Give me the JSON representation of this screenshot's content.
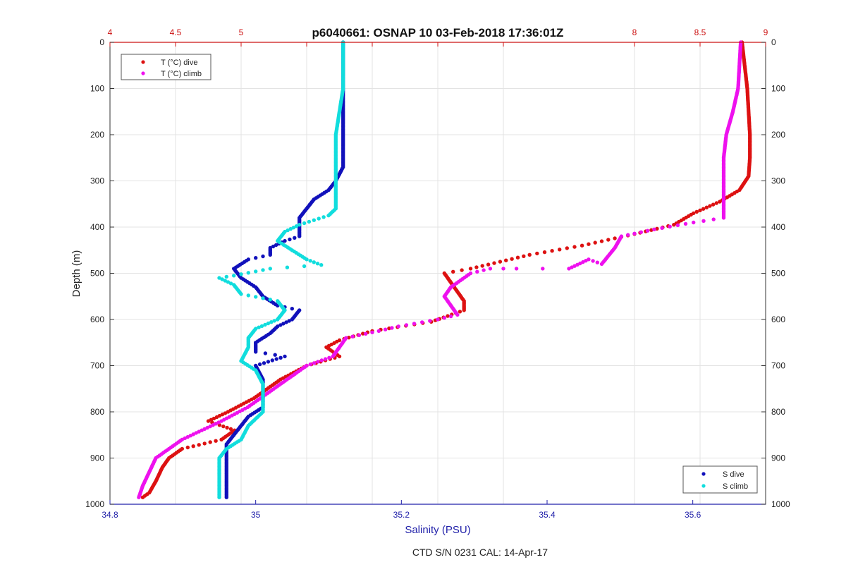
{
  "chart_data": {
    "type": "scatter",
    "title": "p6040661: OSNAP 10 03-Feb-2018 17:36:01Z",
    "footer": "CTD S/N 0231  CAL: 14-Apr-17",
    "ylabel": "Depth (m)",
    "xlabel_bottom": "Salinity (PSU)",
    "ylim": [
      0,
      1000
    ],
    "y_reversed": true,
    "xlim_bottom": [
      34.8,
      35.7
    ],
    "xlim_top": [
      4,
      9
    ],
    "yticks": [
      0,
      100,
      200,
      300,
      400,
      500,
      600,
      700,
      800,
      900,
      1000
    ],
    "xticks_bottom": [
      "34.8",
      "35",
      "35.2",
      "35.4",
      "35.6"
    ],
    "xticks_top": [
      "4",
      "4.5",
      "5",
      "",
      "",
      "",
      "",
      "8",
      "8.5",
      "9"
    ],
    "xticks_top_values": [
      4,
      4.5,
      5,
      5.5,
      6,
      6.5,
      7,
      8,
      8.5,
      9
    ],
    "xticks_bottom_values": [
      34.8,
      35.0,
      35.2,
      35.4,
      35.6
    ],
    "grid": true,
    "legend_top": {
      "placement": "top-left",
      "entries": [
        {
          "label": "T (°C) dive",
          "color": "#dd1111"
        },
        {
          "label": "T (°C) climb",
          "color": "#ee11ee"
        }
      ]
    },
    "legend_bottom": {
      "placement": "bottom-right",
      "entries": [
        {
          "label": "S dive",
          "color": "#1111bb"
        },
        {
          "label": "S climb",
          "color": "#11dddd"
        }
      ]
    },
    "series": [
      {
        "name": "T (°C) dive",
        "axis": "top",
        "color": "#dd1111",
        "points": [
          [
            8.82,
            0
          ],
          [
            8.84,
            50
          ],
          [
            8.86,
            100
          ],
          [
            8.87,
            150
          ],
          [
            8.88,
            200
          ],
          [
            8.88,
            250
          ],
          [
            8.87,
            290
          ],
          [
            8.8,
            320
          ],
          [
            8.65,
            345
          ],
          [
            8.45,
            370
          ],
          [
            8.3,
            395
          ],
          [
            8.0,
            415
          ],
          [
            7.6,
            440
          ],
          [
            7.2,
            460
          ],
          [
            6.75,
            490
          ],
          [
            6.55,
            500
          ],
          [
            6.6,
            520
          ],
          [
            6.65,
            540
          ],
          [
            6.7,
            560
          ],
          [
            6.7,
            580
          ],
          [
            6.45,
            605
          ],
          [
            6.0,
            625
          ],
          [
            5.75,
            645
          ],
          [
            5.65,
            660
          ],
          [
            5.75,
            680
          ],
          [
            5.5,
            700
          ],
          [
            5.3,
            730
          ],
          [
            5.1,
            770
          ],
          [
            4.9,
            800
          ],
          [
            4.75,
            820
          ],
          [
            4.95,
            840
          ],
          [
            4.85,
            860
          ],
          [
            4.55,
            880
          ],
          [
            4.45,
            900
          ],
          [
            4.4,
            920
          ],
          [
            4.35,
            950
          ],
          [
            4.3,
            975
          ],
          [
            4.25,
            985
          ]
        ]
      },
      {
        "name": "T (°C) climb",
        "axis": "top",
        "color": "#ee11ee",
        "points": [
          [
            8.81,
            0
          ],
          [
            8.8,
            50
          ],
          [
            8.79,
            100
          ],
          [
            8.75,
            150
          ],
          [
            8.7,
            200
          ],
          [
            8.68,
            250
          ],
          [
            8.68,
            300
          ],
          [
            8.68,
            350
          ],
          [
            8.68,
            380
          ],
          [
            8.45,
            390
          ],
          [
            8.15,
            405
          ],
          [
            7.9,
            420
          ],
          [
            7.85,
            445
          ],
          [
            7.75,
            480
          ],
          [
            7.65,
            470
          ],
          [
            7.5,
            490
          ],
          [
            7.1,
            490
          ],
          [
            6.9,
            490
          ],
          [
            6.75,
            500
          ],
          [
            6.6,
            530
          ],
          [
            6.55,
            550
          ],
          [
            6.6,
            570
          ],
          [
            6.65,
            590
          ],
          [
            6.5,
            600
          ],
          [
            6.2,
            615
          ],
          [
            6.05,
            625
          ],
          [
            5.8,
            640
          ],
          [
            5.75,
            660
          ],
          [
            5.7,
            680
          ],
          [
            5.5,
            700
          ],
          [
            5.35,
            730
          ],
          [
            5.2,
            760
          ],
          [
            5.05,
            790
          ],
          [
            4.85,
            820
          ],
          [
            4.7,
            840
          ],
          [
            4.55,
            860
          ],
          [
            4.45,
            880
          ],
          [
            4.35,
            900
          ],
          [
            4.3,
            930
          ],
          [
            4.25,
            960
          ],
          [
            4.22,
            985
          ]
        ]
      },
      {
        "name": "S dive",
        "axis": "bottom",
        "color": "#1111bb",
        "points": [
          [
            35.12,
            0
          ],
          [
            35.12,
            100
          ],
          [
            35.12,
            200
          ],
          [
            35.12,
            270
          ],
          [
            35.11,
            300
          ],
          [
            35.1,
            320
          ],
          [
            35.08,
            340
          ],
          [
            35.07,
            360
          ],
          [
            35.06,
            380
          ],
          [
            35.06,
            400
          ],
          [
            35.06,
            420
          ],
          [
            35.04,
            430
          ],
          [
            35.02,
            445
          ],
          [
            35.02,
            460
          ],
          [
            34.99,
            470
          ],
          [
            34.97,
            490
          ],
          [
            34.98,
            510
          ],
          [
            35.0,
            530
          ],
          [
            35.01,
            550
          ],
          [
            35.03,
            570
          ],
          [
            35.06,
            580
          ],
          [
            35.05,
            600
          ],
          [
            35.03,
            615
          ],
          [
            35.02,
            630
          ],
          [
            35.0,
            650
          ],
          [
            35.0,
            670
          ],
          [
            35.04,
            680
          ],
          [
            35.0,
            700
          ],
          [
            35.01,
            730
          ],
          [
            35.01,
            760
          ],
          [
            35.01,
            790
          ],
          [
            34.99,
            810
          ],
          [
            34.98,
            830
          ],
          [
            34.97,
            850
          ],
          [
            34.96,
            870
          ],
          [
            34.96,
            900
          ],
          [
            34.96,
            930
          ],
          [
            34.96,
            960
          ],
          [
            34.96,
            985
          ]
        ]
      },
      {
        "name": "S climb",
        "axis": "bottom",
        "color": "#11dddd",
        "points": [
          [
            35.12,
            0
          ],
          [
            35.12,
            100
          ],
          [
            35.11,
            200
          ],
          [
            35.11,
            300
          ],
          [
            35.11,
            360
          ],
          [
            35.1,
            375
          ],
          [
            35.08,
            385
          ],
          [
            35.06,
            395
          ],
          [
            35.04,
            410
          ],
          [
            35.03,
            430
          ],
          [
            35.05,
            450
          ],
          [
            35.07,
            470
          ],
          [
            35.09,
            482
          ],
          [
            35.02,
            490
          ],
          [
            34.97,
            505
          ],
          [
            34.95,
            510
          ],
          [
            34.97,
            525
          ],
          [
            34.98,
            545
          ],
          [
            35.03,
            560
          ],
          [
            35.04,
            580
          ],
          [
            35.03,
            600
          ],
          [
            35.0,
            620
          ],
          [
            34.99,
            640
          ],
          [
            34.99,
            660
          ],
          [
            34.98,
            690
          ],
          [
            35.0,
            710
          ],
          [
            35.01,
            740
          ],
          [
            35.01,
            770
          ],
          [
            35.01,
            800
          ],
          [
            34.99,
            830
          ],
          [
            34.98,
            860
          ],
          [
            34.96,
            880
          ],
          [
            34.95,
            900
          ],
          [
            34.95,
            930
          ],
          [
            34.95,
            960
          ],
          [
            34.95,
            985
          ]
        ]
      }
    ]
  }
}
